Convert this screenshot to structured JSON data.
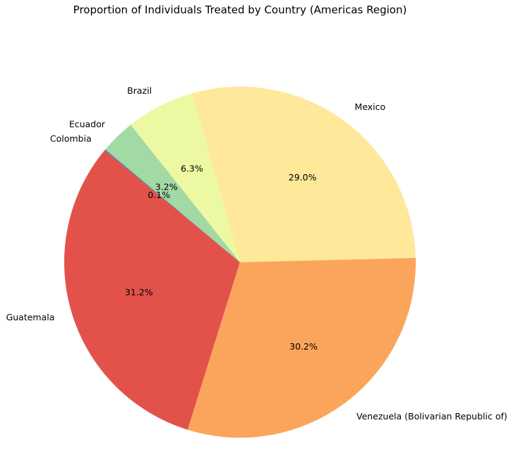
{
  "chart_data": {
    "type": "pie",
    "title": "Proportion of Individuals Treated by Country (Americas Region)",
    "start_angle_deg": 140,
    "direction": "counterclockwise",
    "slices": [
      {
        "label": "Colombia",
        "value": 0.1,
        "pct_label": "0.1%",
        "color": "#3288bd"
      },
      {
        "label": "Guatemala",
        "value": 31.2,
        "pct_label": "31.2%",
        "color": "#e2524a"
      },
      {
        "label": "Venezuela (Bolivarian Republic of)",
        "value": 30.2,
        "pct_label": "30.2%",
        "color": "#fba55c"
      },
      {
        "label": "Mexico",
        "value": 29.0,
        "pct_label": "29.0%",
        "color": "#fee899"
      },
      {
        "label": "Brazil",
        "value": 6.3,
        "pct_label": "6.3%",
        "color": "#edf8a3"
      },
      {
        "label": "Ecuador",
        "value": 3.2,
        "pct_label": "3.2%",
        "color": "#a2d9a4"
      }
    ]
  }
}
